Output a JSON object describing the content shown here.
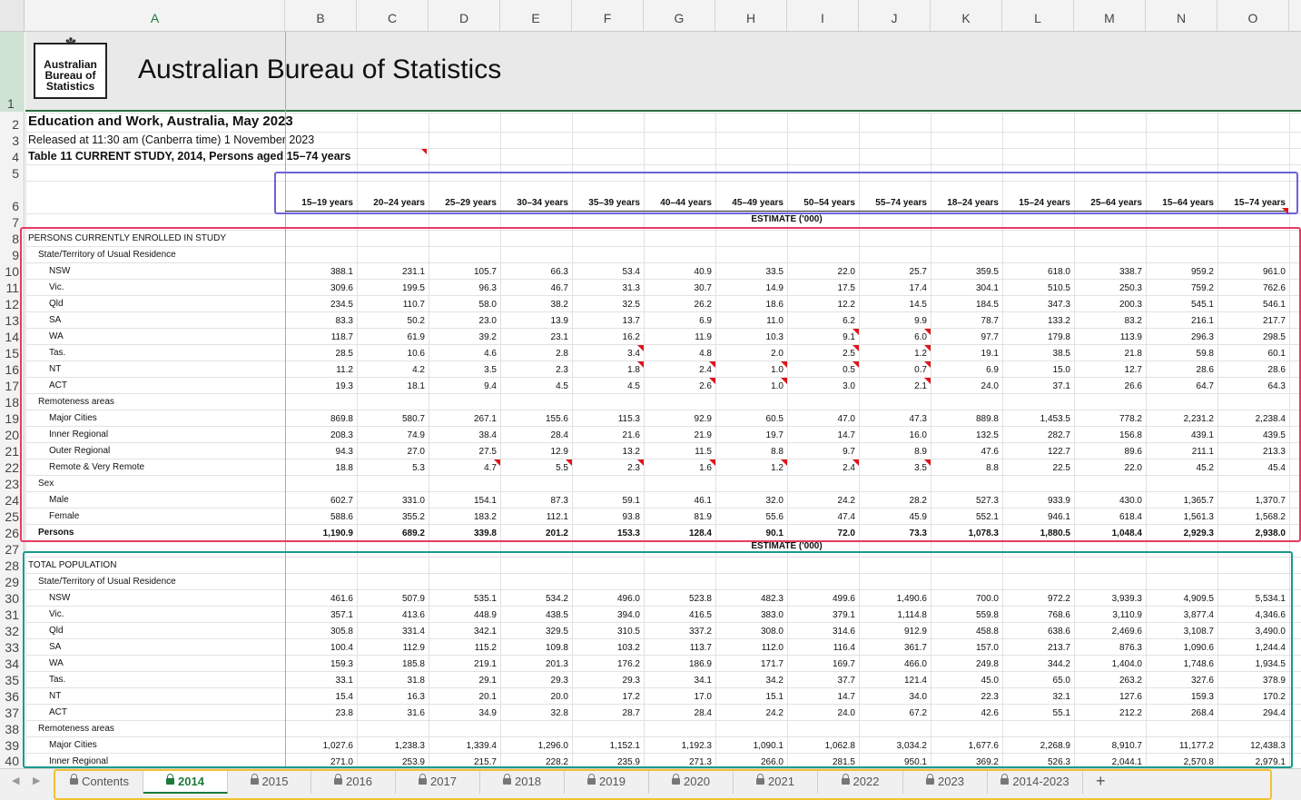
{
  "columns": [
    "A",
    "B",
    "C",
    "D",
    "E",
    "F",
    "G",
    "H",
    "I",
    "J",
    "K",
    "L",
    "M",
    "N",
    "O"
  ],
  "banner": {
    "logo_lines": [
      "Australian",
      "Bureau of",
      "Statistics"
    ],
    "title": "Australian Bureau of Statistics"
  },
  "title_rows": {
    "title": "Education and Work, Australia, May 2023",
    "released": "Released at 11:30 am (Canberra time) 1 November 2023",
    "table": "Table 11 CURRENT STUDY, 2014, Persons aged 15–74 years"
  },
  "age_headers": [
    "15–19 years",
    "20–24 years",
    "25–29 years",
    "30–34 years",
    "35–39 years",
    "40–44 years",
    "45–49 years",
    "50–54 years",
    "55–74 years",
    "18–24 years",
    "15–24 years",
    "25–64 years",
    "15–64 years",
    "15–74 years"
  ],
  "estimate_label": "ESTIMATE ('000)",
  "rows": [
    {
      "label": "PERSONS CURRENTLY ENROLLED IN STUDY",
      "indent": 0
    },
    {
      "label": "State/Territory of Usual Residence",
      "indent": 1
    },
    {
      "label": "NSW",
      "indent": 2,
      "values": [
        "388.1",
        "231.1",
        "105.7",
        "66.3",
        "53.4",
        "40.9",
        "33.5",
        "22.0",
        "25.7",
        "359.5",
        "618.0",
        "338.7",
        "959.2",
        "961.0"
      ]
    },
    {
      "label": "Vic.",
      "indent": 2,
      "values": [
        "309.6",
        "199.5",
        "96.3",
        "46.7",
        "31.3",
        "30.7",
        "14.9",
        "17.5",
        "17.4",
        "304.1",
        "510.5",
        "250.3",
        "759.2",
        "762.6"
      ]
    },
    {
      "label": "Qld",
      "indent": 2,
      "values": [
        "234.5",
        "110.7",
        "58.0",
        "38.2",
        "32.5",
        "26.2",
        "18.6",
        "12.2",
        "14.5",
        "184.5",
        "347.3",
        "200.3",
        "545.1",
        "546.1"
      ]
    },
    {
      "label": "SA",
      "indent": 2,
      "values": [
        "83.3",
        "50.2",
        "23.0",
        "13.9",
        "13.7",
        "6.9",
        "11.0",
        "6.2",
        "9.9",
        "78.7",
        "133.2",
        "83.2",
        "216.1",
        "217.7"
      ]
    },
    {
      "label": "WA",
      "indent": 2,
      "values": [
        "118.7",
        "61.9",
        "39.2",
        "23.1",
        "16.2",
        "11.9",
        "10.3",
        "9.1",
        "6.0",
        "97.7",
        "179.8",
        "113.9",
        "296.3",
        "298.5"
      ]
    },
    {
      "label": "Tas.",
      "indent": 2,
      "values": [
        "28.5",
        "10.6",
        "4.6",
        "2.8",
        "3.4",
        "4.8",
        "2.0",
        "2.5",
        "1.2",
        "19.1",
        "38.5",
        "21.8",
        "59.8",
        "60.1"
      ]
    },
    {
      "label": "NT",
      "indent": 2,
      "values": [
        "11.2",
        "4.2",
        "3.5",
        "2.3",
        "1.8",
        "2.4",
        "1.0",
        "0.5",
        "0.7",
        "6.9",
        "15.0",
        "12.7",
        "28.6",
        "28.6"
      ]
    },
    {
      "label": "ACT",
      "indent": 2,
      "values": [
        "19.3",
        "18.1",
        "9.4",
        "4.5",
        "4.5",
        "2.6",
        "1.0",
        "3.0",
        "2.1",
        "24.0",
        "37.1",
        "26.6",
        "64.7",
        "64.3"
      ]
    },
    {
      "label": "Remoteness areas",
      "indent": 1
    },
    {
      "label": "Major Cities",
      "indent": 2,
      "values": [
        "869.8",
        "580.7",
        "267.1",
        "155.6",
        "115.3",
        "92.9",
        "60.5",
        "47.0",
        "47.3",
        "889.8",
        "1,453.5",
        "778.2",
        "2,231.2",
        "2,238.4"
      ]
    },
    {
      "label": "Inner Regional",
      "indent": 2,
      "values": [
        "208.3",
        "74.9",
        "38.4",
        "28.4",
        "21.6",
        "21.9",
        "19.7",
        "14.7",
        "16.0",
        "132.5",
        "282.7",
        "156.8",
        "439.1",
        "439.5"
      ]
    },
    {
      "label": "Outer Regional",
      "indent": 2,
      "values": [
        "94.3",
        "27.0",
        "27.5",
        "12.9",
        "13.2",
        "11.5",
        "8.8",
        "9.7",
        "8.9",
        "47.6",
        "122.7",
        "89.6",
        "211.1",
        "213.3"
      ]
    },
    {
      "label": "Remote & Very Remote",
      "indent": 2,
      "values": [
        "18.8",
        "5.3",
        "4.7",
        "5.5",
        "2.3",
        "1.6",
        "1.2",
        "2.4",
        "3.5",
        "8.8",
        "22.5",
        "22.0",
        "45.2",
        "45.4"
      ]
    },
    {
      "label": "Sex",
      "indent": 1
    },
    {
      "label": "Male",
      "indent": 2,
      "values": [
        "602.7",
        "331.0",
        "154.1",
        "87.3",
        "59.1",
        "46.1",
        "32.0",
        "24.2",
        "28.2",
        "527.3",
        "933.9",
        "430.0",
        "1,365.7",
        "1,370.7"
      ]
    },
    {
      "label": "Female",
      "indent": 2,
      "values": [
        "588.6",
        "355.2",
        "183.2",
        "112.1",
        "93.8",
        "81.9",
        "55.6",
        "47.4",
        "45.9",
        "552.1",
        "946.1",
        "618.4",
        "1,561.3",
        "1,568.2"
      ]
    },
    {
      "label": "Persons",
      "indent": 1,
      "bold": true,
      "values": [
        "1,190.9",
        "689.2",
        "339.8",
        "201.2",
        "153.3",
        "128.4",
        "90.1",
        "72.0",
        "73.3",
        "1,078.3",
        "1,880.5",
        "1,048.4",
        "2,929.3",
        "2,938.0"
      ]
    },
    {
      "label": "",
      "indent": 0,
      "estimate": true
    },
    {
      "label": "TOTAL POPULATION",
      "indent": 0
    },
    {
      "label": "State/Territory of Usual Residence",
      "indent": 1
    },
    {
      "label": "NSW",
      "indent": 2,
      "values": [
        "461.6",
        "507.9",
        "535.1",
        "534.2",
        "496.0",
        "523.8",
        "482.3",
        "499.6",
        "1,490.6",
        "700.0",
        "972.2",
        "3,939.3",
        "4,909.5",
        "5,534.1"
      ]
    },
    {
      "label": "Vic.",
      "indent": 2,
      "values": [
        "357.1",
        "413.6",
        "448.9",
        "438.5",
        "394.0",
        "416.5",
        "383.0",
        "379.1",
        "1,114.8",
        "559.8",
        "768.6",
        "3,110.9",
        "3,877.4",
        "4,346.6"
      ]
    },
    {
      "label": "Qld",
      "indent": 2,
      "values": [
        "305.8",
        "331.4",
        "342.1",
        "329.5",
        "310.5",
        "337.2",
        "308.0",
        "314.6",
        "912.9",
        "458.8",
        "638.6",
        "2,469.6",
        "3,108.7",
        "3,490.0"
      ]
    },
    {
      "label": "SA",
      "indent": 2,
      "values": [
        "100.4",
        "112.9",
        "115.2",
        "109.8",
        "103.2",
        "113.7",
        "112.0",
        "116.4",
        "361.7",
        "157.0",
        "213.7",
        "876.3",
        "1,090.6",
        "1,244.4"
      ]
    },
    {
      "label": "WA",
      "indent": 2,
      "values": [
        "159.3",
        "185.8",
        "219.1",
        "201.3",
        "176.2",
        "186.9",
        "171.7",
        "169.7",
        "466.0",
        "249.8",
        "344.2",
        "1,404.0",
        "1,748.6",
        "1,934.5"
      ]
    },
    {
      "label": "Tas.",
      "indent": 2,
      "values": [
        "33.1",
        "31.8",
        "29.1",
        "29.3",
        "29.3",
        "34.1",
        "34.2",
        "37.7",
        "121.4",
        "45.0",
        "65.0",
        "263.2",
        "327.6",
        "378.9"
      ]
    },
    {
      "label": "NT",
      "indent": 2,
      "values": [
        "15.4",
        "16.3",
        "20.1",
        "20.0",
        "17.2",
        "17.0",
        "15.1",
        "14.7",
        "34.0",
        "22.3",
        "32.1",
        "127.6",
        "159.3",
        "170.2"
      ]
    },
    {
      "label": "ACT",
      "indent": 2,
      "values": [
        "23.8",
        "31.6",
        "34.9",
        "32.8",
        "28.7",
        "28.4",
        "24.2",
        "24.0",
        "67.2",
        "42.6",
        "55.1",
        "212.2",
        "268.4",
        "294.4"
      ]
    },
    {
      "label": "Remoteness areas",
      "indent": 1
    },
    {
      "label": "Major Cities",
      "indent": 2,
      "values": [
        "1,027.6",
        "1,238.3",
        "1,339.4",
        "1,296.0",
        "1,152.1",
        "1,192.3",
        "1,090.1",
        "1,062.8",
        "3,034.2",
        "1,677.6",
        "2,268.9",
        "8,910.7",
        "11,177.2",
        "12,438.3"
      ]
    },
    {
      "label": "Inner Regional",
      "indent": 2,
      "values": [
        "271.0",
        "253.9",
        "215.7",
        "228.2",
        "235.9",
        "271.3",
        "266.0",
        "281.5",
        "950.1",
        "369.2",
        "526.3",
        "2,044.1",
        "2,570.8",
        "2,979.1"
      ]
    }
  ],
  "tabs": [
    "Contents",
    "2014",
    "2015",
    "2016",
    "2017",
    "2018",
    "2019",
    "2020",
    "2021",
    "2022",
    "2023",
    "2014-2023"
  ],
  "active_tab": "2014",
  "colors": {
    "accent_green": "#1d7a3a",
    "comment_red": "#e0141c",
    "box_purple": "#6b63d8",
    "box_red": "#e83a62",
    "box_teal": "#1a9a8c",
    "box_yellow": "#f1c232"
  }
}
